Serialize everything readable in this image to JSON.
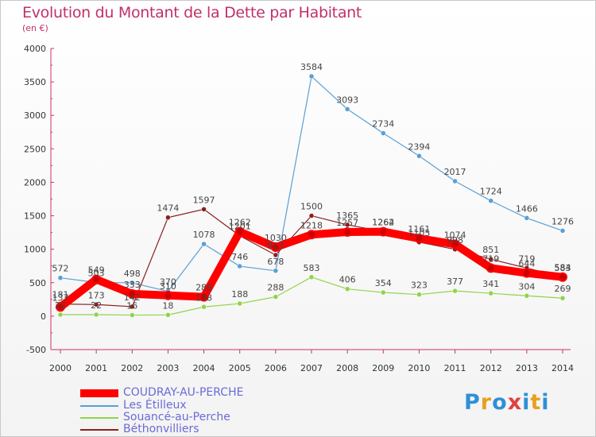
{
  "header": {
    "title": "Evolution du Montant de la Dette par Habitant",
    "subtitle": "(en €)"
  },
  "logo": {
    "text": "Proxiti",
    "colors": [
      "#2f8fd8",
      "#e8a020",
      "#2f8fd8",
      "#e04040",
      "#2f8fd8",
      "#e8a020",
      "#2f8fd8"
    ]
  },
  "chart_data": {
    "type": "line",
    "title": "Evolution du Montant de la Dette par Habitant",
    "subtitle": "(en €)",
    "xlabel": "",
    "ylabel": "",
    "x": [
      "2000",
      "2001",
      "2002",
      "2003",
      "2004",
      "2005",
      "2006",
      "2007",
      "2008",
      "2009",
      "2010",
      "2011",
      "2012",
      "2013",
      "2014"
    ],
    "ylim": [
      -500,
      4000
    ],
    "yticks": [
      "-500",
      "0",
      "500",
      "1000",
      "1500",
      "2000",
      "2500",
      "3000",
      "3500",
      "4000"
    ],
    "grid": false,
    "legend_position": "bottom-left",
    "series": [
      {
        "name": "COUDRAY-AU-PERCHE",
        "color": "#ff0000",
        "values": [
          137,
          549,
          333,
          310,
          288,
          1262,
          1030,
          1218,
          1257,
          1262,
          1161,
          1074,
          719,
          644,
          584
        ]
      },
      {
        "name": "Les Étilleux",
        "color": "#5a9fd4",
        "values": [
          572,
          503,
          498,
          370,
          1078,
          746,
          678,
          3584,
          3093,
          2734,
          2394,
          2017,
          1724,
          1466,
          1276
        ]
      },
      {
        "name": "Souancé-au-Perche",
        "color": "#8fd44a",
        "values": [
          22,
          22,
          16,
          18,
          138,
          188,
          288,
          583,
          406,
          354,
          323,
          377,
          341,
          304,
          269
        ]
      },
      {
        "name": "Béthonvilliers",
        "color": "#8b2020",
        "values": [
          181,
          173,
          142,
          1474,
          1597,
          1201,
          913,
          1500,
          1365,
          1264,
          1105,
          998,
          851,
          719,
          583
        ]
      }
    ]
  }
}
